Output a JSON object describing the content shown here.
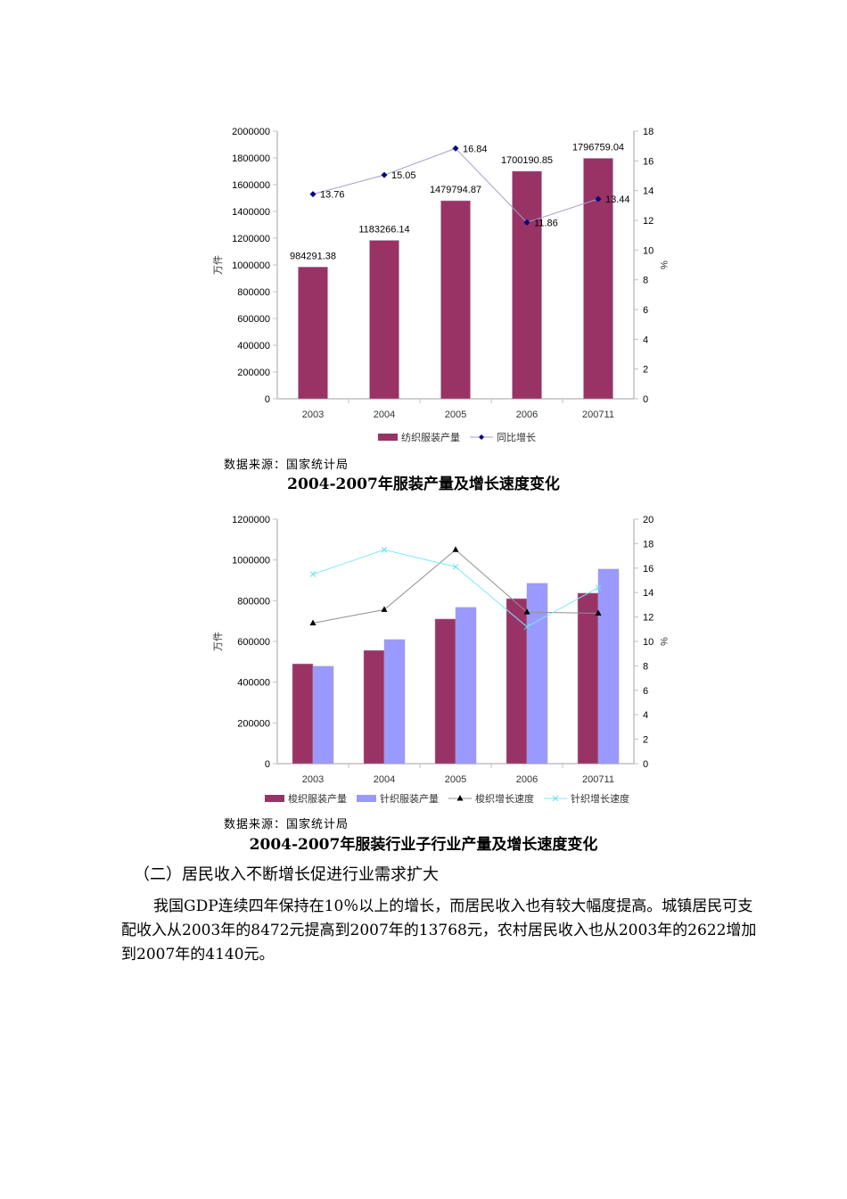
{
  "colors": {
    "bar_primary": "#993366",
    "bar_secondary": "#9999FF",
    "line_growth": "#000080",
    "line_woven": "#000000",
    "line_knit": "#66E0F0",
    "axis": "#C0C0C0"
  },
  "chart_data": [
    {
      "type": "bar",
      "title": "2004-2007年服装产量及增长速度变化",
      "source": "数据来源：国家统计局",
      "categories": [
        "2003",
        "2004",
        "2005",
        "2006",
        "200711"
      ],
      "series": [
        {
          "name": "纺织服装产量",
          "kind": "bar",
          "axis": "left",
          "values": [
            984291.38,
            1183266.14,
            1479794.87,
            1700190.85,
            1796759.04
          ]
        },
        {
          "name": "同比增长",
          "kind": "line",
          "axis": "right",
          "marker": "diamond",
          "values": [
            13.76,
            15.05,
            16.84,
            11.86,
            13.44
          ]
        }
      ],
      "ylabel": "万件",
      "y2label": "%",
      "ylim": [
        0,
        2000000
      ],
      "yticks": [
        0,
        200000,
        400000,
        600000,
        800000,
        1000000,
        1200000,
        1400000,
        1600000,
        1800000,
        2000000
      ],
      "y2lim": [
        0,
        18
      ],
      "y2ticks": [
        0,
        2,
        4,
        6,
        8,
        10,
        12,
        14,
        16,
        18
      ],
      "data_labels": {
        "bars": [
          "984291.38",
          "1183266.14",
          "1479794.87",
          "1700190.85",
          "1796759.04"
        ],
        "line": [
          "13.76",
          "15.05",
          "16.84",
          "11.86",
          "13.44"
        ]
      },
      "legend_position": "bottom",
      "grid": false
    },
    {
      "type": "bar",
      "title": "2004-2007年服装行业子行业产量及增长速度变化",
      "source": "数据来源：国家统计局",
      "categories": [
        "2003",
        "2004",
        "2005",
        "2006",
        "200711"
      ],
      "series": [
        {
          "name": "梭织服装产量",
          "kind": "bar",
          "axis": "left",
          "values": [
            490000,
            556000,
            710000,
            810000,
            837000
          ]
        },
        {
          "name": "针织服装产量",
          "kind": "bar",
          "axis": "left",
          "values": [
            478000,
            609000,
            767000,
            885000,
            955000
          ]
        },
        {
          "name": "梭织增长速度",
          "kind": "line",
          "axis": "right",
          "marker": "triangle",
          "values": [
            11.5,
            12.6,
            17.5,
            12.4,
            12.3
          ]
        },
        {
          "name": "针织增长速度",
          "kind": "line",
          "axis": "right",
          "marker": "x",
          "values": [
            15.5,
            17.5,
            16.1,
            11.2,
            14.4
          ]
        }
      ],
      "ylabel": "万件",
      "y2label": "%",
      "ylim": [
        0,
        1200000
      ],
      "yticks": [
        0,
        200000,
        400000,
        600000,
        800000,
        1000000,
        1200000
      ],
      "y2lim": [
        0,
        20
      ],
      "y2ticks": [
        0,
        2,
        4,
        6,
        8,
        10,
        12,
        14,
        16,
        18,
        20
      ],
      "legend_position": "bottom",
      "grid": false
    }
  ],
  "document": {
    "chart1_source": "数据来源：国家统计局",
    "chart1_caption": "2004-2007年服装产量及增长速度变化",
    "chart2_source": "数据来源：国家统计局",
    "chart2_caption": "2004-2007年服装行业子行业产量及增长速度变化",
    "section_heading": "（二）居民收入不断增长促进行业需求扩大",
    "paragraph": "我国GDP连续四年保持在10％以上的增长，而居民收入也有较大幅度提高。城镇居民可支配收入从2003年的8472元提高到2007年的13768元，农村居民收入也从2003年的2622增加到2007年的4140元。"
  }
}
